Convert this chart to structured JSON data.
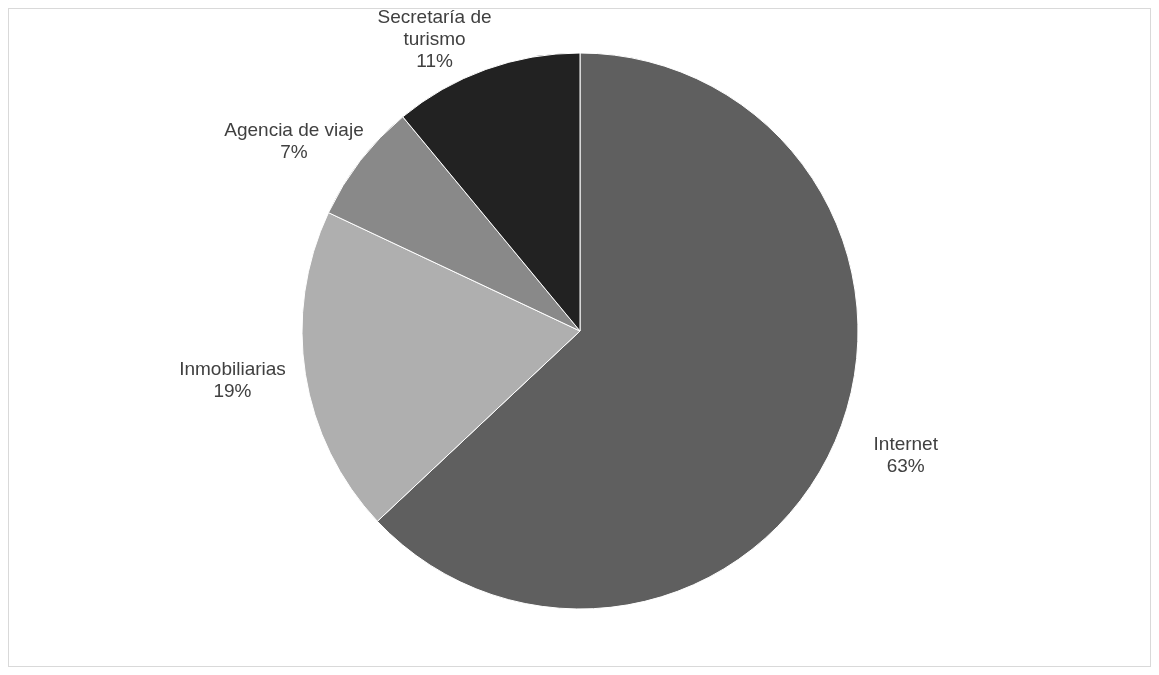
{
  "chart_data": {
    "type": "pie",
    "categories": [
      "Internet",
      "Inmobiliarias",
      "Agencia de viaje",
      "Secretaría de turismo"
    ],
    "values": [
      63,
      19,
      7,
      11
    ],
    "colors": [
      "#5f5f5f",
      "#afafaf",
      "#898989",
      "#222222"
    ],
    "value_labels": [
      "63%",
      "19%",
      "7%",
      "11%"
    ]
  }
}
